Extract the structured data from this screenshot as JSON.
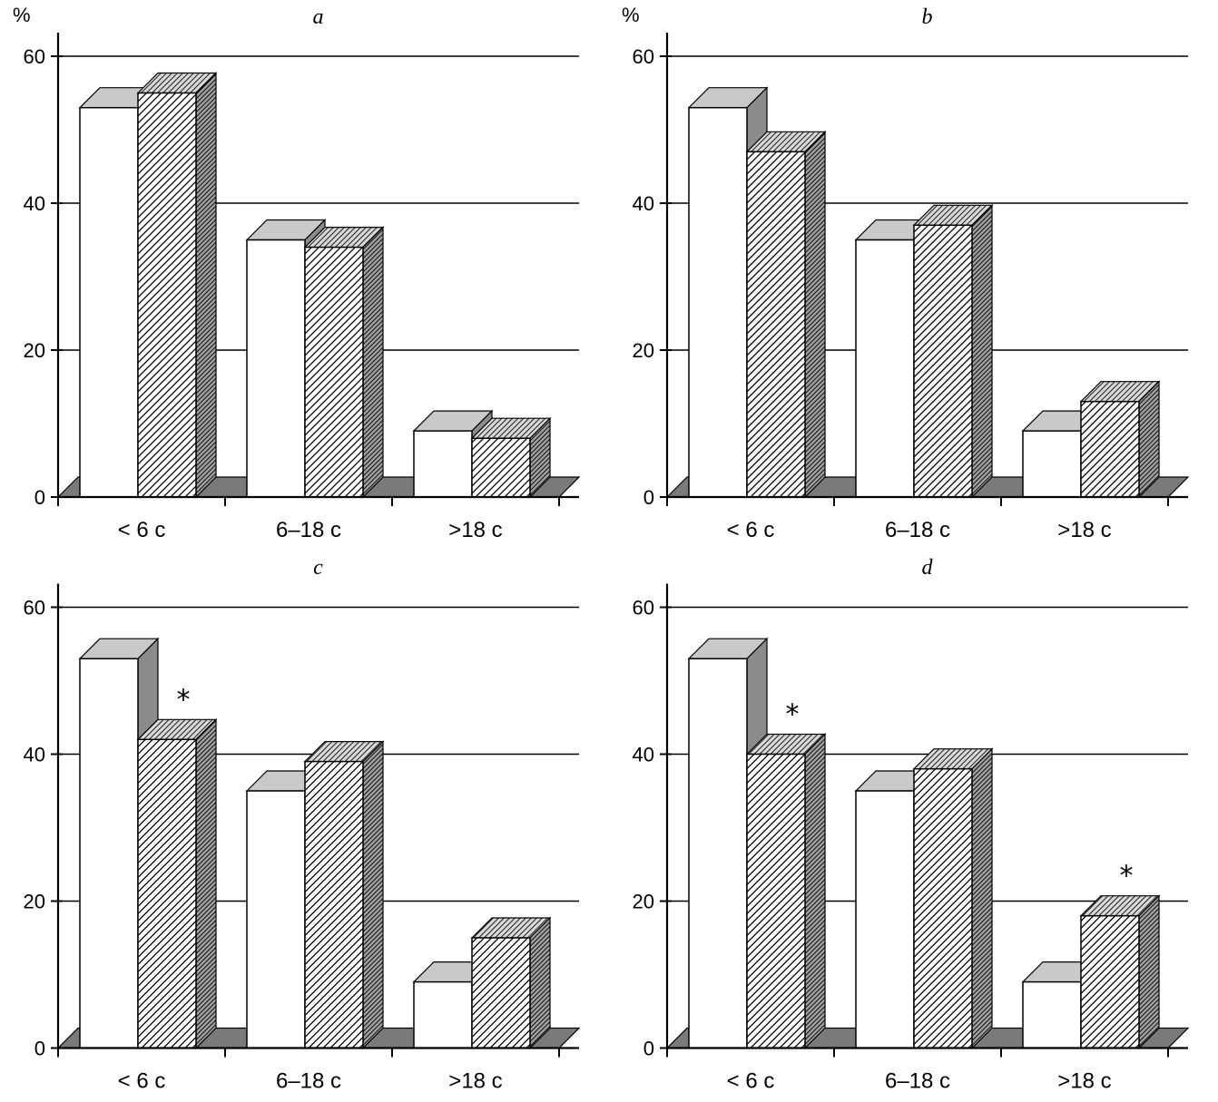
{
  "chart_data": [
    {
      "type": "bar",
      "panel": "a",
      "title": "a",
      "percent_label": "%",
      "categories": [
        "< 6 c",
        "6–18 c",
        ">18 c"
      ],
      "yticks": [
        0,
        20,
        40,
        60
      ],
      "ylim": [
        0,
        62
      ],
      "legend_position": "none",
      "grid": true,
      "series": [
        {
          "name": "white",
          "values": [
            53,
            35,
            9
          ]
        },
        {
          "name": "hatched",
          "values": [
            55,
            34,
            8
          ]
        }
      ],
      "annotations": []
    },
    {
      "type": "bar",
      "panel": "b",
      "title": "b",
      "percent_label": "%",
      "categories": [
        "< 6 c",
        "6–18 c",
        ">18 c"
      ],
      "yticks": [
        0,
        20,
        40,
        60
      ],
      "ylim": [
        0,
        62
      ],
      "legend_position": "none",
      "grid": true,
      "series": [
        {
          "name": "white",
          "values": [
            53,
            35,
            9
          ]
        },
        {
          "name": "hatched",
          "values": [
            47,
            37,
            13
          ]
        }
      ],
      "annotations": []
    },
    {
      "type": "bar",
      "panel": "c",
      "title": "c",
      "categories": [
        "< 6 c",
        "6–18 c",
        ">18 c"
      ],
      "yticks": [
        0,
        20,
        40,
        60
      ],
      "ylim": [
        0,
        62
      ],
      "legend_position": "none",
      "grid": true,
      "series": [
        {
          "name": "white",
          "values": [
            53,
            35,
            9
          ]
        },
        {
          "name": "hatched",
          "values": [
            42,
            39,
            15
          ]
        }
      ],
      "annotations": [
        {
          "series": 1,
          "category": 0,
          "text": "*"
        }
      ]
    },
    {
      "type": "bar",
      "panel": "d",
      "title": "d",
      "categories": [
        "< 6 c",
        "6–18 c",
        ">18 c"
      ],
      "yticks": [
        0,
        20,
        40,
        60
      ],
      "ylim": [
        0,
        62
      ],
      "legend_position": "none",
      "grid": true,
      "series": [
        {
          "name": "white",
          "values": [
            53,
            35,
            9
          ]
        },
        {
          "name": "hatched",
          "values": [
            40,
            38,
            18
          ]
        }
      ],
      "annotations": [
        {
          "series": 1,
          "category": 0,
          "text": "*"
        },
        {
          "series": 1,
          "category": 2,
          "text": "*"
        }
      ]
    }
  ],
  "colors": {
    "bar_white_front": "#ffffff",
    "bar_white_top": "#c9c9c9",
    "bar_white_side": "#8b8b8b",
    "hatch_line": "#000000",
    "hatch_top_bg": "#d8d8d8",
    "hatch_side_bg": "#a0a0a0",
    "floor": "#7a7a7a",
    "axis": "#000000"
  }
}
